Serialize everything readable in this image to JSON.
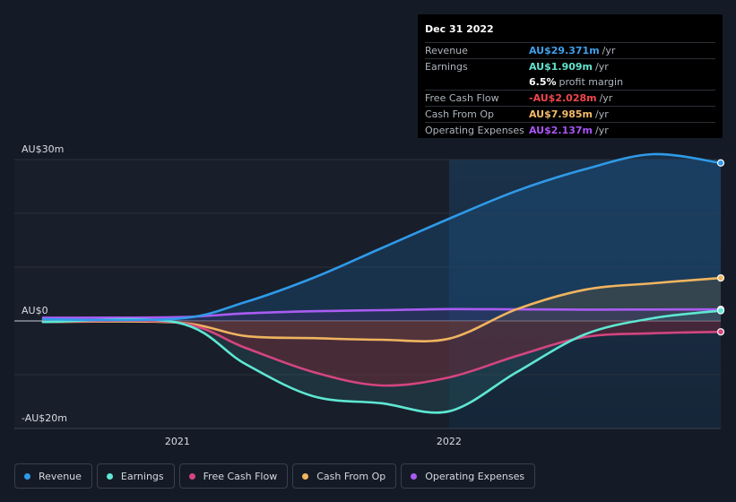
{
  "tooltip": {
    "date": "Dec 31 2022",
    "rows": [
      {
        "label": "Revenue",
        "value": "AU$29.371m",
        "unit": "/yr",
        "color": "#3ea0ec"
      },
      {
        "label": "Earnings",
        "value": "AU$1.909m",
        "unit": "/yr",
        "color": "#63e3cd"
      },
      {
        "label": "",
        "value": "6.5%",
        "unit": "profit margin",
        "color": "#ffffff"
      },
      {
        "label": "Free Cash Flow",
        "value": "-AU$2.028m",
        "unit": "/yr",
        "color": "#f0464c"
      },
      {
        "label": "Cash From Op",
        "value": "AU$7.985m",
        "unit": "/yr",
        "color": "#f4bb6b"
      },
      {
        "label": "Operating Expenses",
        "value": "AU$2.137m",
        "unit": "/yr",
        "color": "#a855f7"
      }
    ]
  },
  "legend": [
    {
      "label": "Revenue",
      "color": "#2f9ae8"
    },
    {
      "label": "Earnings",
      "color": "#5ee7d2"
    },
    {
      "label": "Free Cash Flow",
      "color": "#d4457f"
    },
    {
      "label": "Cash From Op",
      "color": "#f0b45f"
    },
    {
      "label": "Operating Expenses",
      "color": "#a95cf2"
    }
  ],
  "chart_data": {
    "type": "line",
    "ylim": [
      -20,
      30
    ],
    "y_ticks": [
      {
        "value": 30,
        "label": "AU$30m"
      },
      {
        "value": 0,
        "label": "AU$0"
      },
      {
        "value": -20,
        "label": "-AU$20m"
      }
    ],
    "x_ticks": [
      {
        "value": 2021.0,
        "label": "2021"
      },
      {
        "value": 2022.0,
        "label": "2022"
      }
    ],
    "xlim": [
      2020.4,
      2023.0
    ],
    "highlight_from": 2022.0,
    "units": "AU$m",
    "series": [
      {
        "name": "Revenue",
        "color": "#2f9ae8",
        "x": [
          2020.5,
          2021.0,
          2021.25,
          2021.5,
          2021.75,
          2022.0,
          2022.25,
          2022.5,
          2022.75,
          2023.0
        ],
        "values": [
          0.3,
          0.4,
          3.5,
          8.0,
          13.5,
          19.0,
          24.2,
          28.2,
          31.0,
          29.37
        ]
      },
      {
        "name": "Earnings",
        "color": "#5ee7d2",
        "x": [
          2020.5,
          2021.0,
          2021.25,
          2021.5,
          2021.75,
          2022.0,
          2022.25,
          2022.5,
          2022.75,
          2023.0
        ],
        "values": [
          -0.2,
          -0.3,
          -8.0,
          -14.0,
          -15.3,
          -16.8,
          -9.5,
          -2.5,
          0.5,
          1.91
        ]
      },
      {
        "name": "Free Cash Flow",
        "color": "#d4457f",
        "x": [
          2020.5,
          2021.0,
          2021.25,
          2021.5,
          2021.75,
          2022.0,
          2022.25,
          2022.5,
          2022.75,
          2023.0
        ],
        "values": [
          -0.2,
          -0.3,
          -5.0,
          -9.5,
          -12.0,
          -10.5,
          -6.5,
          -3.0,
          -2.3,
          -2.03
        ]
      },
      {
        "name": "Cash From Op",
        "color": "#f0b45f",
        "x": [
          2020.5,
          2021.0,
          2021.25,
          2021.5,
          2021.75,
          2022.0,
          2022.25,
          2022.5,
          2022.75,
          2023.0
        ],
        "values": [
          -0.2,
          -0.3,
          -2.8,
          -3.2,
          -3.5,
          -3.3,
          2.2,
          5.8,
          7.0,
          7.99
        ]
      },
      {
        "name": "Operating Expenses",
        "color": "#a95cf2",
        "x": [
          2020.5,
          2021.0,
          2021.25,
          2021.5,
          2021.75,
          2022.0,
          2022.25,
          2022.5,
          2022.75,
          2023.0
        ],
        "values": [
          0.6,
          0.7,
          1.4,
          1.8,
          2.0,
          2.2,
          2.15,
          2.1,
          2.12,
          2.14
        ]
      }
    ]
  }
}
